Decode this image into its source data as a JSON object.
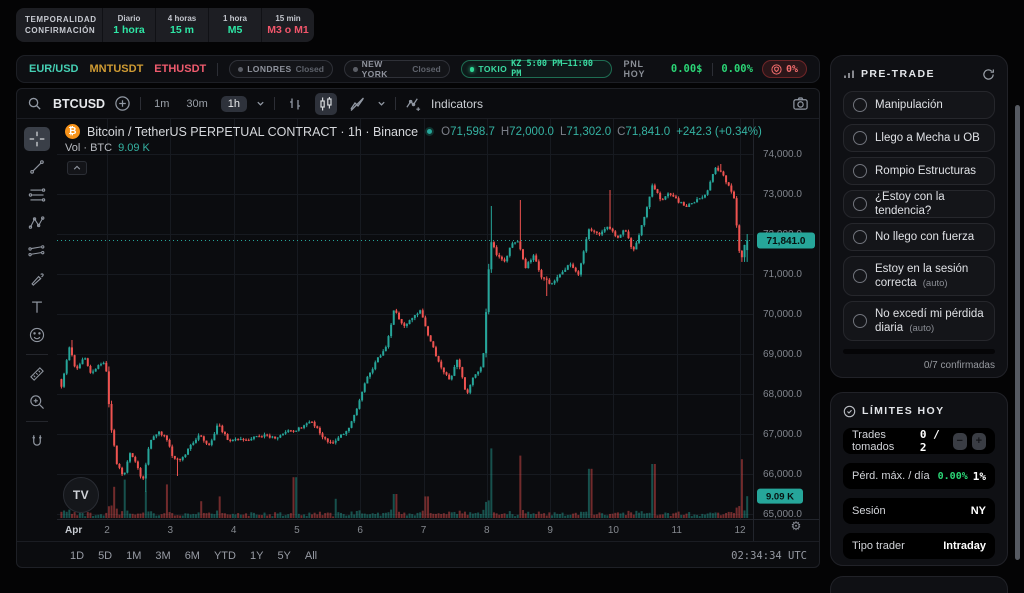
{
  "confirm_widget": {
    "row1_label": "TEMPORALIDAD",
    "row2_label": "CONFIRMACIÓN",
    "columns": [
      {
        "tf": "Diario",
        "conf": "1 hora",
        "status": "ok"
      },
      {
        "tf": "4 horas",
        "conf": "15 m",
        "status": "ok"
      },
      {
        "tf": "1 hora",
        "conf": "M5",
        "status": "ok"
      },
      {
        "tf": "15 min",
        "conf": "M3 o M1",
        "status": "bad"
      }
    ]
  },
  "markets_bar": {
    "pairs": [
      {
        "label": "EUR/USD",
        "color": "#45d0b4"
      },
      {
        "label": "MNTUSDT",
        "color": "#cf9b33"
      },
      {
        "label": "ETHUSDT",
        "color": "#ef5b6e"
      }
    ],
    "sessions": [
      {
        "name": "LONDRES",
        "status": "Closed",
        "open": false
      },
      {
        "name": "NEW YORK",
        "status": "Closed",
        "open": false
      },
      {
        "name": "TOKIO",
        "status": "KZ 5:00 PM–11:00 PM",
        "open": true
      }
    ],
    "pnl": {
      "label": "PNL HOY",
      "amount": "0.00$",
      "percent": "0.00%",
      "risk": "0%"
    }
  },
  "toolbar": {
    "symbol": "BTCUSD",
    "intervals": [
      "1m",
      "30m",
      "1h"
    ],
    "active_interval": "1h",
    "indicators_label": "Indicators"
  },
  "legend": {
    "title": "Bitcoin / TetherUS PERPETUAL CONTRACT · 1h · Binance",
    "o_label": "O",
    "o": "71,598.7",
    "h_label": "H",
    "h": "72,000.0",
    "l_label": "L",
    "l": "71,302.0",
    "c_label": "C",
    "c": "71,841.0",
    "change": "+242.3 (+0.34%)",
    "vol_label": "Vol · BTC",
    "vol": "9.09 K"
  },
  "bottom_bar": {
    "ranges": [
      "1D",
      "5D",
      "1M",
      "3M",
      "6M",
      "YTD",
      "1Y",
      "5Y",
      "All"
    ],
    "clock": "02:34:34 UTC"
  },
  "sidebar": {
    "pretrade": {
      "title": "PRE-TRADE",
      "items": [
        {
          "label": "Manipulación",
          "tag": ""
        },
        {
          "label": "Llego a Mecha u OB",
          "tag": ""
        },
        {
          "label": "Rompio Estructuras",
          "tag": ""
        },
        {
          "label": "¿Estoy con la tendencia?",
          "tag": ""
        },
        {
          "label": "No llego con fuerza",
          "tag": ""
        },
        {
          "label": "Estoy en la sesión correcta",
          "tag": "(auto)"
        },
        {
          "label": "No excedí mi pérdida diaria",
          "tag": "(auto)"
        }
      ],
      "progress_note": "0/7 confirmadas",
      "confirmed": 0,
      "total": 7
    },
    "limits": {
      "title": "LÍMITES HOY",
      "rows": [
        {
          "label": "Trades tomados",
          "value": "0 / 2"
        },
        {
          "label": "Pérd. máx. / día",
          "value": "0.00%",
          "value2": "1%"
        },
        {
          "label": "Sesión",
          "value": "NY"
        },
        {
          "label": "Tipo trader",
          "value": "Intraday"
        }
      ]
    }
  },
  "chart_data": {
    "type": "candlestick",
    "symbol": "BTCUSD",
    "title": "Bitcoin / TetherUS PERPETUAL CONTRACT · 1h · Binance",
    "interval": "1h",
    "exchange": "Binance",
    "last": {
      "open": 71598.7,
      "high": 72000.0,
      "low": 71302.0,
      "close": 71841.0,
      "change": 242.3,
      "change_pct": 0.34,
      "volume_btc_k": 9.09
    },
    "last_price_label": "71,841.0",
    "volume_badge": "9.09 K",
    "ylim": [
      64125,
      74875
    ],
    "y_axis": {
      "tick_values": [
        74000,
        73000,
        72000,
        71000,
        70000,
        69000,
        68000,
        67000,
        66000,
        65000
      ],
      "tick_labels": [
        "74,000.0",
        "73,000.0",
        "72,000.0",
        "71,000.0",
        "70,000.0",
        "69,000.0",
        "68,000.0",
        "67,000.0",
        "66,000.0",
        "65,000.0"
      ]
    },
    "x_axis": {
      "month_label": "Apr",
      "day_labels": [
        "2",
        "3",
        "4",
        "5",
        "6",
        "7",
        "8",
        "9",
        "10",
        "11",
        "12"
      ],
      "day_values": [
        2,
        3,
        4,
        5,
        6,
        7,
        8,
        9,
        10,
        11,
        12
      ]
    },
    "view": {
      "day_start": 1.28,
      "day_end": 12.125,
      "candles_per_day": 24
    },
    "price_keyframes": [
      [
        1.25,
        68500
      ],
      [
        1.32,
        68200
      ],
      [
        1.45,
        69200
      ],
      [
        1.55,
        68600
      ],
      [
        1.68,
        69000
      ],
      [
        1.8,
        68500
      ],
      [
        1.92,
        68800
      ],
      [
        2.02,
        68800
      ],
      [
        2.1,
        67200
      ],
      [
        2.2,
        66200
      ],
      [
        2.3,
        65950
      ],
      [
        2.4,
        66550
      ],
      [
        2.5,
        66250
      ],
      [
        2.6,
        65800
      ],
      [
        2.72,
        66800
      ],
      [
        2.85,
        67050
      ],
      [
        2.98,
        66900
      ],
      [
        3.08,
        66450
      ],
      [
        3.2,
        66350
      ],
      [
        3.35,
        66650
      ],
      [
        3.5,
        66950
      ],
      [
        3.65,
        66650
      ],
      [
        3.8,
        67250
      ],
      [
        3.95,
        66850
      ],
      [
        4.1,
        66950
      ],
      [
        4.3,
        66900
      ],
      [
        4.5,
        67000
      ],
      [
        4.7,
        66900
      ],
      [
        4.9,
        67050
      ],
      [
        5.1,
        67150
      ],
      [
        5.25,
        67300
      ],
      [
        5.4,
        67050
      ],
      [
        5.55,
        66800
      ],
      [
        5.7,
        66900
      ],
      [
        5.85,
        67150
      ],
      [
        6.0,
        67650
      ],
      [
        6.15,
        68350
      ],
      [
        6.3,
        68800
      ],
      [
        6.45,
        69150
      ],
      [
        6.58,
        70150
      ],
      [
        6.72,
        69650
      ],
      [
        6.85,
        69850
      ],
      [
        7.0,
        70050
      ],
      [
        7.15,
        69300
      ],
      [
        7.3,
        68750
      ],
      [
        7.45,
        68350
      ],
      [
        7.58,
        68850
      ],
      [
        7.72,
        67980
      ],
      [
        7.85,
        68500
      ],
      [
        7.98,
        68800
      ],
      [
        8.1,
        71800
      ],
      [
        8.2,
        71450
      ],
      [
        8.32,
        71300
      ],
      [
        8.42,
        71750
      ],
      [
        8.52,
        71850
      ],
      [
        8.65,
        71150
      ],
      [
        8.78,
        71450
      ],
      [
        8.9,
        70900
      ],
      [
        9.05,
        70700
      ],
      [
        9.2,
        71000
      ],
      [
        9.35,
        71300
      ],
      [
        9.5,
        71050
      ],
      [
        9.65,
        72150
      ],
      [
        9.8,
        71950
      ],
      [
        9.95,
        72250
      ],
      [
        10.1,
        71900
      ],
      [
        10.22,
        72100
      ],
      [
        10.35,
        71500
      ],
      [
        10.5,
        72250
      ],
      [
        10.65,
        73200
      ],
      [
        10.78,
        72850
      ],
      [
        10.92,
        73000
      ],
      [
        11.05,
        72800
      ],
      [
        11.2,
        72700
      ],
      [
        11.35,
        72850
      ],
      [
        11.5,
        73050
      ],
      [
        11.65,
        73600
      ],
      [
        11.75,
        73550
      ],
      [
        11.85,
        73250
      ],
      [
        11.95,
        72950
      ],
      [
        12.02,
        71600
      ],
      [
        12.07,
        71350
      ],
      [
        12.125,
        71841
      ]
    ],
    "wick_events": [
      {
        "day": 1.45,
        "type": "high",
        "price": 69350
      },
      {
        "day": 2.62,
        "type": "low",
        "price": 65550
      },
      {
        "day": 3.1,
        "type": "low",
        "price": 65950
      },
      {
        "day": 8.08,
        "type": "high",
        "price": 72700
      },
      {
        "day": 8.52,
        "type": "high",
        "price": 72850
      },
      {
        "day": 8.95,
        "type": "low",
        "price": 70450
      },
      {
        "day": 9.96,
        "type": "high",
        "price": 73100
      },
      {
        "day": 11.68,
        "type": "high",
        "price": 73750
      },
      {
        "day": 12.05,
        "type": "low",
        "price": 71302
      }
    ],
    "volume_spikes_k": [
      {
        "day": 2.12,
        "v": 13
      },
      {
        "day": 2.28,
        "v": 16
      },
      {
        "day": 2.62,
        "v": 11
      },
      {
        "day": 2.95,
        "v": 14
      },
      {
        "day": 3.5,
        "v": 7
      },
      {
        "day": 3.78,
        "v": 9
      },
      {
        "day": 4.97,
        "v": 17
      },
      {
        "day": 5.6,
        "v": 8
      },
      {
        "day": 6.55,
        "v": 10
      },
      {
        "day": 7.05,
        "v": 9
      },
      {
        "day": 8.06,
        "v": 29
      },
      {
        "day": 8.52,
        "v": 26
      },
      {
        "day": 9.63,
        "v": 20.5
      },
      {
        "day": 10.63,
        "v": 22.5
      },
      {
        "day": 12.03,
        "v": 24.5
      },
      {
        "day": 12.12,
        "v": 9.09
      }
    ],
    "colors": {
      "up": "#26a69a",
      "down": "#ef5350",
      "grid": "#171a20",
      "axis_text": "#82868e",
      "badge_bg": "#26a69a",
      "badge_text": "#071210"
    }
  }
}
